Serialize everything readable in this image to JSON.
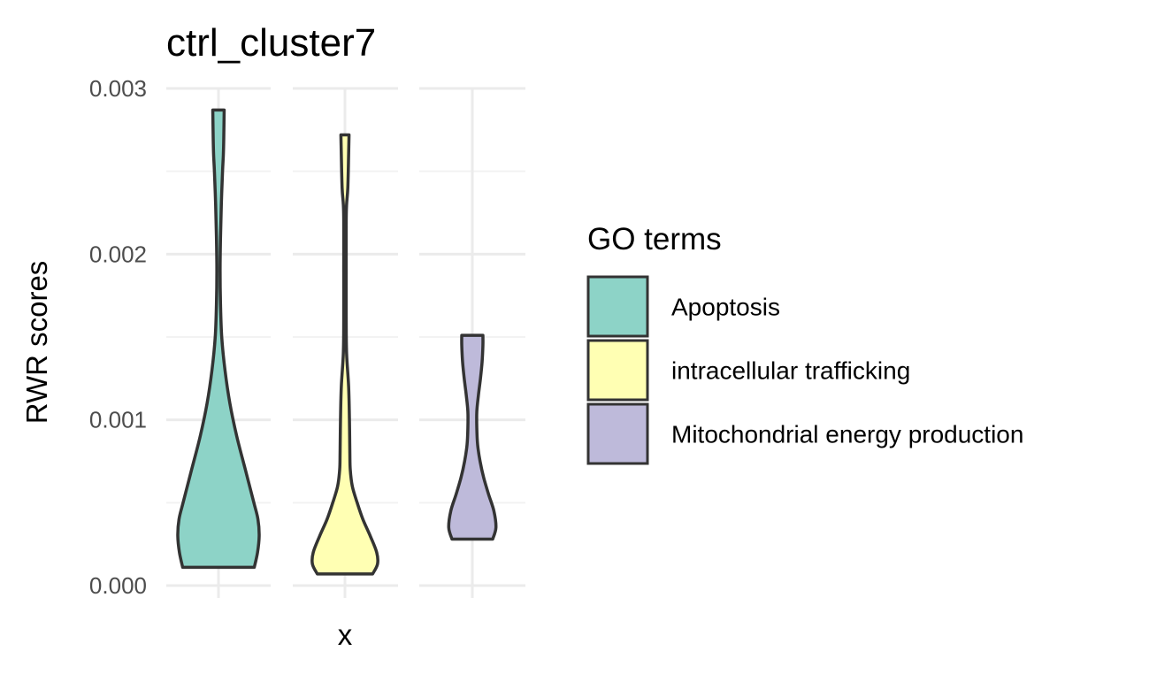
{
  "chart_data": {
    "type": "violin",
    "title": "ctrl_cluster7",
    "xlabel": "x",
    "ylabel": "RWR scores",
    "ylim": [
      0,
      0.003
    ],
    "y_ticks": [
      "0.000",
      "0.001",
      "0.002",
      "0.003"
    ],
    "y_tick_values": [
      0,
      0.001,
      0.002,
      0.003
    ],
    "grid": true,
    "legend": {
      "title": "GO terms",
      "placement": "right"
    },
    "series": [
      {
        "name": "Apoptosis",
        "color": "#8DD3C7",
        "min": 0.00011,
        "max": 0.00287,
        "density": [
          [
            0.00011,
            0.88
          ],
          [
            0.0002,
            0.96
          ],
          [
            0.0003,
            1.0
          ],
          [
            0.0004,
            0.97
          ],
          [
            0.0005,
            0.87
          ],
          [
            0.0007,
            0.66
          ],
          [
            0.0009,
            0.45
          ],
          [
            0.0011,
            0.28
          ],
          [
            0.0013,
            0.16
          ],
          [
            0.0015,
            0.08
          ],
          [
            0.0017,
            0.05
          ],
          [
            0.0019,
            0.04
          ],
          [
            0.0021,
            0.05
          ],
          [
            0.0023,
            0.07
          ],
          [
            0.0025,
            0.1
          ],
          [
            0.0026,
            0.12
          ],
          [
            0.0027,
            0.13
          ],
          [
            0.00287,
            0.14
          ]
        ]
      },
      {
        "name": "intracellular trafficking",
        "color": "#FFFFB3",
        "min": 7e-05,
        "max": 0.00272,
        "density": [
          [
            7e-05,
            0.68
          ],
          [
            0.00013,
            0.8
          ],
          [
            0.0002,
            0.78
          ],
          [
            0.0003,
            0.62
          ],
          [
            0.0004,
            0.44
          ],
          [
            0.0005,
            0.3
          ],
          [
            0.0006,
            0.18
          ],
          [
            0.0007,
            0.13
          ],
          [
            0.0008,
            0.12
          ],
          [
            0.001,
            0.11
          ],
          [
            0.0012,
            0.09
          ],
          [
            0.0014,
            0.04
          ],
          [
            0.0016,
            0.03
          ],
          [
            0.0019,
            0.03
          ],
          [
            0.0022,
            0.03
          ],
          [
            0.0023,
            0.04
          ],
          [
            0.0024,
            0.07
          ],
          [
            0.0026,
            0.09
          ],
          [
            0.00272,
            0.1
          ]
        ]
      },
      {
        "name": "Mitochondrial energy production",
        "color": "#BEBADA",
        "min": 0.00028,
        "max": 0.00151,
        "density": [
          [
            0.00028,
            0.5
          ],
          [
            0.00035,
            0.58
          ],
          [
            0.00045,
            0.53
          ],
          [
            0.00055,
            0.4
          ],
          [
            0.00065,
            0.28
          ],
          [
            0.00075,
            0.19
          ],
          [
            0.00085,
            0.13
          ],
          [
            0.00095,
            0.11
          ],
          [
            0.00105,
            0.11
          ],
          [
            0.00115,
            0.15
          ],
          [
            0.00125,
            0.2
          ],
          [
            0.00135,
            0.24
          ],
          [
            0.00145,
            0.26
          ],
          [
            0.00151,
            0.26
          ]
        ]
      }
    ]
  }
}
